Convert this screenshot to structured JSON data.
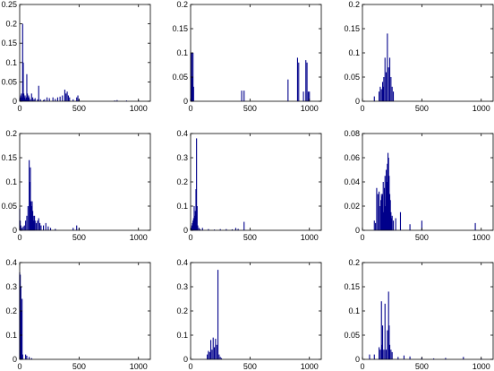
{
  "chart_data": [
    {
      "type": "bar",
      "title": "",
      "xlabel": "",
      "ylabel": "",
      "xlim": [
        0,
        1100
      ],
      "ylim": [
        0,
        0.25
      ],
      "xticks": [
        "0",
        "500",
        "1000"
      ],
      "yticks": [
        "0",
        "0.05",
        "0.1",
        "0.15",
        "0.2",
        "0.25"
      ],
      "color": "#00008b",
      "x": [
        5,
        10,
        15,
        20,
        25,
        28,
        30,
        35,
        40,
        45,
        50,
        55,
        60,
        65,
        70,
        75,
        80,
        90,
        100,
        110,
        120,
        130,
        150,
        160,
        175,
        200,
        210,
        230,
        250,
        280,
        300,
        320,
        340,
        360,
        380,
        390,
        400,
        410,
        420,
        450,
        480,
        490,
        500,
        800,
        820,
        900,
        1000
      ],
      "values": [
        0.01,
        0.015,
        0.02,
        0.01,
        0.2,
        0.02,
        0.1,
        0.02,
        0.01,
        0.015,
        0.005,
        0.01,
        0.07,
        0.02,
        0.01,
        0.015,
        0.01,
        0.005,
        0.02,
        0.01,
        0.005,
        0.008,
        0.005,
        0.04,
        0.005,
        0.003,
        0.005,
        0.01,
        0.008,
        0.01,
        0.006,
        0.01,
        0.012,
        0.015,
        0.03,
        0.02,
        0.025,
        0.015,
        0.01,
        0.005,
        0.01,
        0.015,
        0.005,
        0.002,
        0.003,
        0.002,
        0.002
      ]
    },
    {
      "type": "bar",
      "title": "",
      "xlabel": "",
      "ylabel": "",
      "xlim": [
        0,
        1100
      ],
      "ylim": [
        0,
        0.2
      ],
      "xticks": [
        "0",
        "500",
        "1000"
      ],
      "yticks": [
        "0",
        "0.05",
        "0.1",
        "0.15",
        "0.2"
      ],
      "color": "#00008b",
      "x": [
        5,
        10,
        15,
        20,
        25,
        430,
        450,
        820,
        900,
        910,
        950,
        970,
        980,
        990,
        1000
      ],
      "values": [
        0.1,
        0.1,
        0.05,
        0.1,
        0.03,
        0.022,
        0.022,
        0.045,
        0.09,
        0.08,
        0.02,
        0.085,
        0.08,
        0.02,
        0.02
      ]
    },
    {
      "type": "bar",
      "title": "",
      "xlabel": "",
      "ylabel": "",
      "xlim": [
        0,
        1100
      ],
      "ylim": [
        0,
        0.2
      ],
      "xticks": [
        "0",
        "500",
        "1000"
      ],
      "yticks": [
        "0",
        "0.05",
        "0.1",
        "0.15",
        "0.2"
      ],
      "color": "#00008b",
      "x": [
        100,
        140,
        150,
        160,
        170,
        175,
        180,
        190,
        200,
        210,
        220,
        230,
        240,
        250,
        260
      ],
      "values": [
        0.01,
        0.02,
        0.03,
        0.025,
        0.04,
        0.03,
        0.05,
        0.09,
        0.06,
        0.14,
        0.07,
        0.09,
        0.05,
        0.03,
        0.02
      ]
    },
    {
      "type": "bar",
      "title": "",
      "xlabel": "",
      "ylabel": "",
      "xlim": [
        0,
        1100
      ],
      "ylim": [
        0,
        0.2
      ],
      "xticks": [
        "0",
        "500",
        "1000"
      ],
      "yticks": [
        "0",
        "0.05",
        "0.1",
        "0.15",
        "0.2"
      ],
      "color": "#00008b",
      "x": [
        0,
        5,
        10,
        20,
        30,
        40,
        50,
        60,
        70,
        80,
        85,
        90,
        95,
        100,
        105,
        110,
        115,
        120,
        125,
        130,
        140,
        150,
        160,
        170,
        180,
        200,
        220,
        240,
        260,
        300,
        450,
        480,
        500
      ],
      "values": [
        0.045,
        0.02,
        0.01,
        0.005,
        0.008,
        0.01,
        0.02,
        0.03,
        0.05,
        0.145,
        0.1,
        0.13,
        0.06,
        0.05,
        0.06,
        0.04,
        0.03,
        0.02,
        0.03,
        0.02,
        0.015,
        0.02,
        0.025,
        0.015,
        0.01,
        0.01,
        0.015,
        0.008,
        0.005,
        0.003,
        0.005,
        0.01,
        0.005
      ]
    },
    {
      "type": "bar",
      "title": "",
      "xlabel": "",
      "ylabel": "",
      "xlim": [
        0,
        1100
      ],
      "ylim": [
        0,
        0.4
      ],
      "xticks": [
        "0",
        "500",
        "1000"
      ],
      "yticks": [
        "0",
        "0.1",
        "0.2",
        "0.3",
        "0.4"
      ],
      "color": "#00008b",
      "x": [
        5,
        10,
        15,
        20,
        25,
        30,
        35,
        40,
        45,
        50,
        55,
        60,
        70,
        80,
        100,
        150,
        200,
        250,
        300,
        350,
        380,
        400,
        450
      ],
      "values": [
        0.01,
        0.02,
        0.03,
        0.04,
        0.05,
        0.1,
        0.06,
        0.08,
        0.17,
        0.38,
        0.1,
        0.02,
        0.01,
        0.005,
        0.01,
        0.005,
        0.003,
        0.005,
        0.005,
        0.004,
        0.01,
        0.006,
        0.035
      ]
    },
    {
      "type": "bar",
      "title": "",
      "xlabel": "",
      "ylabel": "",
      "xlim": [
        0,
        1100
      ],
      "ylim": [
        0,
        0.08
      ],
      "xticks": [
        "0",
        "500",
        "1000"
      ],
      "yticks": [
        "0",
        "0.02",
        "0.04",
        "0.06",
        "0.08"
      ],
      "color": "#00008b",
      "x": [
        100,
        110,
        120,
        130,
        140,
        150,
        155,
        160,
        165,
        170,
        175,
        180,
        185,
        190,
        195,
        200,
        205,
        210,
        215,
        220,
        225,
        230,
        235,
        240,
        245,
        250,
        260,
        280,
        320,
        400,
        500,
        950
      ],
      "values": [
        0.008,
        0.006,
        0.035,
        0.03,
        0.032,
        0.02,
        0.025,
        0.03,
        0.028,
        0.03,
        0.04,
        0.015,
        0.035,
        0.045,
        0.02,
        0.05,
        0.04,
        0.055,
        0.064,
        0.06,
        0.045,
        0.03,
        0.025,
        0.015,
        0.01,
        0.012,
        0.008,
        0.01,
        0.015,
        0.005,
        0.008,
        0.006
      ]
    },
    {
      "type": "bar",
      "title": "",
      "xlabel": "",
      "ylabel": "",
      "xlim": [
        0,
        1100
      ],
      "ylim": [
        0,
        0.4
      ],
      "xticks": [
        "0",
        "500",
        "1000"
      ],
      "yticks": [
        "0",
        "0.1",
        "0.2",
        "0.3",
        "0.4"
      ],
      "color": "#00008b",
      "x": [
        0,
        5,
        10,
        15,
        20,
        25,
        50,
        60,
        80,
        100
      ],
      "values": [
        0.36,
        0.35,
        0.3,
        0.2,
        0.25,
        0.02,
        0.02,
        0.015,
        0.01,
        0.005
      ]
    },
    {
      "type": "bar",
      "title": "",
      "xlabel": "",
      "ylabel": "",
      "xlim": [
        0,
        1100
      ],
      "ylim": [
        0,
        0.4
      ],
      "xticks": [
        "0",
        "500",
        "1000"
      ],
      "yticks": [
        "0",
        "0.1",
        "0.2",
        "0.3",
        "0.4"
      ],
      "color": "#00008b",
      "x": [
        140,
        150,
        160,
        170,
        180,
        190,
        200,
        210,
        220,
        230,
        240,
        250,
        260
      ],
      "values": [
        0.02,
        0.035,
        0.03,
        0.08,
        0.04,
        0.09,
        0.05,
        0.085,
        0.06,
        0.37,
        0.02,
        0.01,
        0.005
      ]
    },
    {
      "type": "bar",
      "title": "",
      "xlabel": "",
      "ylabel": "",
      "xlim": [
        0,
        1100
      ],
      "ylim": [
        0,
        0.2
      ],
      "xticks": [
        "0",
        "500",
        "1000"
      ],
      "yticks": [
        "0",
        "0.05",
        "0.1",
        "0.15",
        "0.2"
      ],
      "color": "#00008b",
      "x": [
        60,
        100,
        140,
        150,
        160,
        165,
        170,
        180,
        190,
        200,
        210,
        220,
        225,
        230,
        240,
        250,
        300,
        350,
        400,
        500,
        600,
        700,
        850,
        1000
      ],
      "values": [
        0.01,
        0.01,
        0.025,
        0.02,
        0.12,
        0.03,
        0.07,
        0.02,
        0.115,
        0.02,
        0.06,
        0.14,
        0.07,
        0.03,
        0.02,
        0.015,
        0.005,
        0.008,
        0.006,
        0.004,
        0.002,
        0.003,
        0.005,
        0.002
      ]
    }
  ]
}
